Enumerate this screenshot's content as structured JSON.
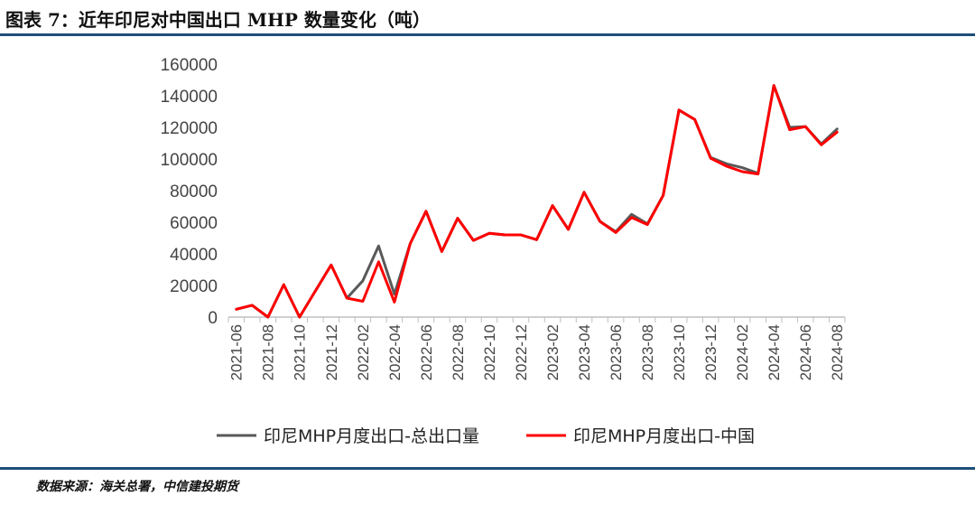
{
  "title": "图表 7：近年印尼对中国出口 MHP 数量变化（吨）",
  "source": "数据来源：海关总署，中信建投期货",
  "colors": {
    "rule": "#1e4e79",
    "total": "#595959",
    "china": "#ff0000",
    "axis": "#bfbfbf"
  },
  "chart_data": {
    "type": "line",
    "title": "",
    "xlabel": "",
    "ylabel": "",
    "ylim": [
      0,
      160000
    ],
    "yticks": [
      0,
      20000,
      40000,
      60000,
      80000,
      100000,
      120000,
      140000,
      160000
    ],
    "ytick_labels": [
      "0",
      "20000",
      "40000",
      "60000",
      "80000",
      "100000",
      "120000",
      "140000",
      "160000"
    ],
    "x": [
      "2021-06",
      "2021-07",
      "2021-08",
      "2021-09",
      "2021-10",
      "2021-11",
      "2021-12",
      "2022-01",
      "2022-02",
      "2022-03",
      "2022-04",
      "2022-05",
      "2022-06",
      "2022-07",
      "2022-08",
      "2022-09",
      "2022-10",
      "2022-11",
      "2022-12",
      "2023-01",
      "2023-02",
      "2023-03",
      "2023-04",
      "2023-05",
      "2023-06",
      "2023-07",
      "2023-08",
      "2023-09",
      "2023-10",
      "2023-11",
      "2023-12",
      "2024-01",
      "2024-02",
      "2024-03",
      "2024-04",
      "2024-05",
      "2024-06",
      "2024-07",
      "2024-08"
    ],
    "xtick_labels": [
      "2021-06",
      "2021-08",
      "2021-10",
      "2021-12",
      "2022-02",
      "2022-04",
      "2022-06",
      "2022-08",
      "2022-10",
      "2022-12",
      "2023-02",
      "2023-04",
      "2023-06",
      "2023-08",
      "2023-10",
      "2023-12",
      "2024-02",
      "2024-04",
      "2024-06",
      "2024-08"
    ],
    "grid": false,
    "legend": "bottom",
    "series": [
      {
        "name": "印尼MHP月度出口-总出口量",
        "color": "#595959",
        "values": [
          5000,
          7500,
          0,
          20500,
          0,
          16500,
          33000,
          12000,
          23000,
          45000,
          14500,
          46500,
          67000,
          41500,
          62500,
          48500,
          53000,
          52000,
          52000,
          49000,
          70500,
          55500,
          79000,
          60500,
          54000,
          65000,
          59000,
          77000,
          131000,
          125000,
          101000,
          97000,
          94500,
          91000,
          146500,
          120000,
          120500,
          109500,
          119000
        ]
      },
      {
        "name": "印尼MHP月度出口-中国",
        "color": "#ff0000",
        "values": [
          5000,
          7500,
          0,
          20500,
          0,
          16500,
          33000,
          12000,
          10000,
          35000,
          9500,
          46500,
          67000,
          41500,
          62500,
          48500,
          53000,
          52000,
          52000,
          49000,
          70500,
          55500,
          79000,
          60500,
          53500,
          63000,
          58500,
          77000,
          131000,
          125000,
          100500,
          95500,
          92000,
          90500,
          146500,
          118500,
          120500,
          109000,
          117000
        ]
      }
    ]
  }
}
